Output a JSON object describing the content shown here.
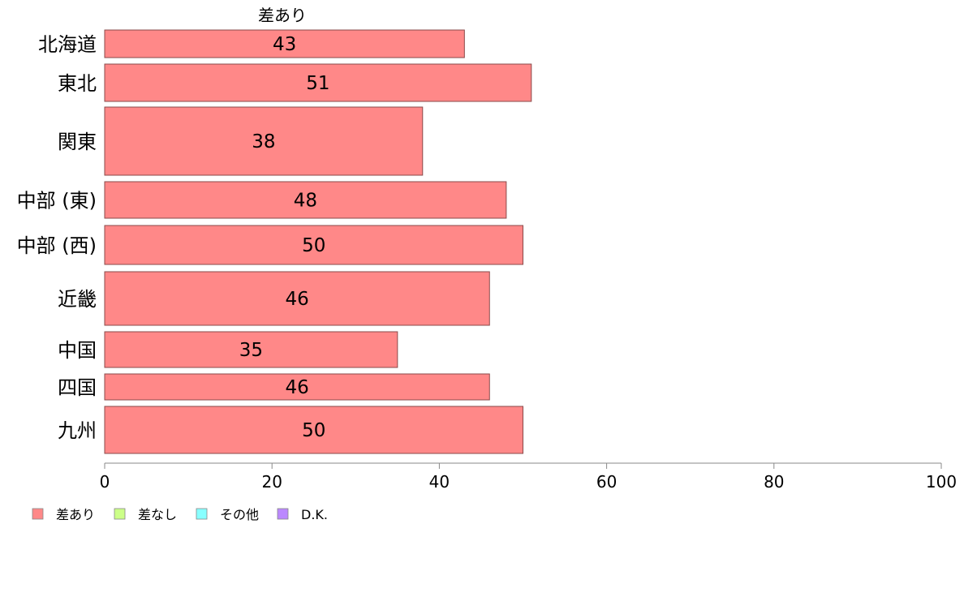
{
  "chart_data": {
    "type": "bar",
    "orientation": "horizontal",
    "series_title": "差あり",
    "categories": [
      "北海道",
      "東北",
      "関東",
      "中部 (東)",
      "中部 (西)",
      "近畿",
      "中国",
      "四国",
      "九州"
    ],
    "values": [
      43,
      51,
      38,
      48,
      50,
      46,
      35,
      46,
      50
    ],
    "xlim": [
      0,
      100
    ],
    "xticks": [
      0,
      20,
      40,
      60,
      80,
      100
    ],
    "grid": false,
    "legend": {
      "placement": "bottom-left",
      "entries": [
        {
          "label": "差あり",
          "color": "#ff8888"
        },
        {
          "label": "差なし",
          "color": "#ccff88"
        },
        {
          "label": "その他",
          "color": "#88ffff"
        },
        {
          "label": "D.K.",
          "color": "#bb88ff"
        }
      ]
    },
    "bar_color": "#ff8888",
    "bar_edge_color": "#8a4a4a"
  }
}
